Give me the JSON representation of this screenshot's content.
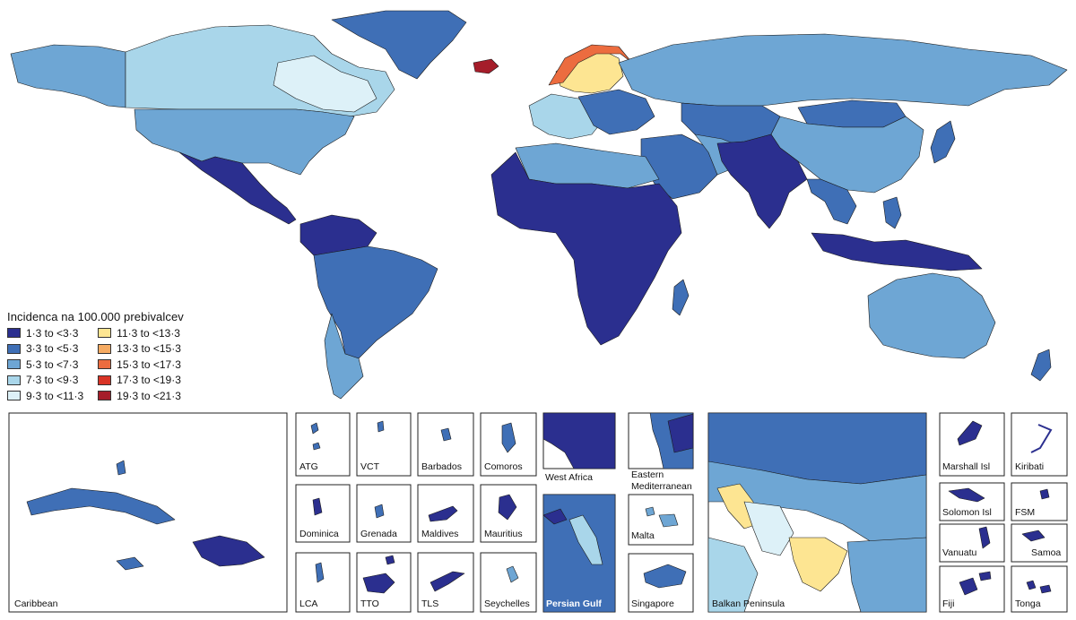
{
  "colors": {
    "c1": "#2b2f8f",
    "c2": "#3f6fb6",
    "c3": "#6ea6d4",
    "c4": "#a9d6ea",
    "c5": "#ddf1f8",
    "c6": "#fde592",
    "c7": "#f6ab62",
    "c8": "#ec6c3f",
    "c9": "#d93426",
    "c10": "#a51d2a"
  },
  "legend": {
    "title": "Incidenca na 100.000 prebivalcev",
    "items": [
      {
        "label": "1·3 to <3·3",
        "color": "#2b2f8f"
      },
      {
        "label": "3·3 to <5·3",
        "color": "#3f6fb6"
      },
      {
        "label": "5·3 to <7·3",
        "color": "#6ea6d4"
      },
      {
        "label": "7·3 to <9·3",
        "color": "#a9d6ea"
      },
      {
        "label": "9·3 to <11·3",
        "color": "#ddf1f8"
      },
      {
        "label": "11·3 to <13·3",
        "color": "#fde592"
      },
      {
        "label": "13·3 to <15·3",
        "color": "#f6ab62"
      },
      {
        "label": "15·3 to <17·3",
        "color": "#ec6c3f"
      },
      {
        "label": "17·3 to <19·3",
        "color": "#d93426"
      },
      {
        "label": "19·3 to <21·3",
        "color": "#a51d2a"
      }
    ]
  },
  "insets": {
    "caribbean": "Caribbean",
    "atg": "ATG",
    "vct": "VCT",
    "barbados": "Barbados",
    "comoros": "Comoros",
    "west_africa": "West Africa",
    "eastern_med_1": "Eastern",
    "eastern_med_2": "Mediterranean",
    "dominica": "Dominica",
    "grenada": "Grenada",
    "maldives": "Maldives",
    "mauritius": "Mauritius",
    "malta": "Malta",
    "lca": "LCA",
    "tto": "TTO",
    "tls": "TLS",
    "seychelles": "Seychelles",
    "persian_gulf": "Persian Gulf",
    "singapore": "Singapore",
    "balkan": "Balkan Peninsula",
    "marshall": "Marshall Isl",
    "kiribati": "Kiribati",
    "solomon": "Solomon Isl",
    "fsm": "FSM",
    "vanuatu": "Vanuatu",
    "samoa": "Samoa",
    "fiji": "Fiji",
    "tonga": "Tonga"
  }
}
